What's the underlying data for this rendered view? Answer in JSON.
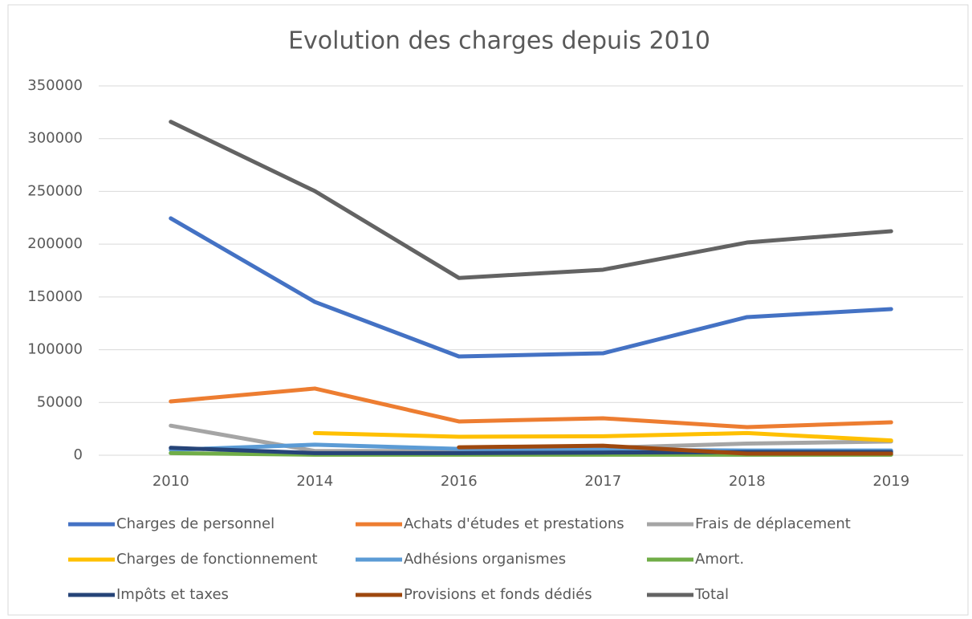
{
  "chart_data": {
    "type": "line",
    "title": "Evolution des charges depuis 2010",
    "categories": [
      "2010",
      "2014",
      "2016",
      "2017",
      "2018",
      "2019"
    ],
    "ylim": [
      0,
      350000
    ],
    "yticks": [
      0,
      50000,
      100000,
      150000,
      200000,
      250000,
      300000,
      350000
    ],
    "grid": true,
    "legend": "bottom",
    "series": [
      {
        "name": "Charges de personnel",
        "color": "#4472c4",
        "values": [
          224500,
          145300,
          93600,
          96600,
          130900,
          138500
        ]
      },
      {
        "name": "Achats d'études et prestations",
        "color": "#ed7d31",
        "values": [
          51000,
          63200,
          32000,
          35000,
          26600,
          31200
        ]
      },
      {
        "name": "Frais de déplacement",
        "color": "#a5a5a5",
        "values": [
          28000,
          4000,
          4000,
          7000,
          11000,
          13000
        ]
      },
      {
        "name": "Charges de fonctionnement",
        "color": "#ffc000",
        "values": [
          null,
          21000,
          17500,
          18000,
          21000,
          14000
        ]
      },
      {
        "name": "Adhésions organismes",
        "color": "#5b9bd5",
        "values": [
          5000,
          10000,
          6000,
          5000,
          4500,
          4500
        ]
      },
      {
        "name": "Amort.",
        "color": "#70ad47",
        "values": [
          2000,
          500,
          500,
          500,
          500,
          500
        ]
      },
      {
        "name": "Impôts et taxes",
        "color": "#264478",
        "values": [
          7000,
          2000,
          2000,
          2500,
          3000,
          3000
        ]
      },
      {
        "name": "Provisions et fonds dédiés",
        "color": "#9e480e",
        "values": [
          null,
          null,
          7500,
          9000,
          1500,
          1500
        ]
      },
      {
        "name": "Total",
        "color": "#636363",
        "values": [
          316000,
          250300,
          168000,
          175800,
          201600,
          212300
        ]
      }
    ]
  }
}
